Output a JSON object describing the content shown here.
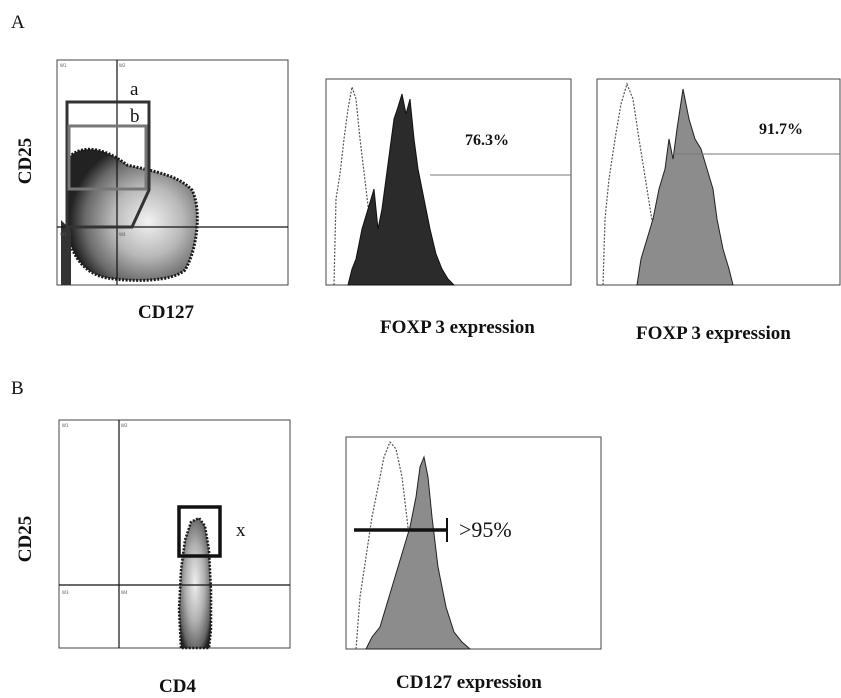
{
  "figure": {
    "panel_a": {
      "letter": "A",
      "scatter": {
        "ylabel": "CD25",
        "xlabel": "CD127",
        "gates": [
          {
            "label": "a"
          },
          {
            "label": "b"
          }
        ]
      },
      "hist1": {
        "xlabel": "FOXP 3 expression",
        "percent": "76.3%"
      },
      "hist2": {
        "xlabel": "FOXP 3 expression",
        "percent": "91.7%"
      }
    },
    "panel_b": {
      "letter": "B",
      "scatter": {
        "ylabel": "CD25",
        "xlabel": "CD4",
        "gates": [
          {
            "label": "x"
          }
        ]
      },
      "hist": {
        "xlabel": "CD127 expression",
        "percent": ">95%"
      }
    }
  },
  "colors": {
    "dark_fill": "#2b2b2b",
    "gray_fill": "#8c8c8c",
    "gate_a": "#333333",
    "gate_b": "#777777"
  }
}
